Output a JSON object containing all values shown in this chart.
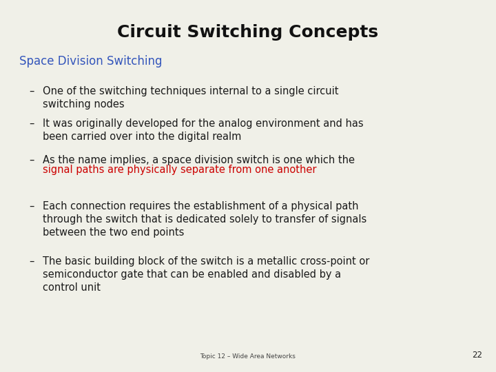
{
  "title": "Circuit Switching Concepts",
  "subtitle": "Space Division Switching",
  "subtitle_color": "#3355bb",
  "title_color": "#111111",
  "background_color": "#f0f0e8",
  "bullet_color": "#1a1a1a",
  "highlight_color": "#cc0000",
  "footer_text": "Topic 12 – Wide Area Networks",
  "footer_number": "22",
  "title_fontsize": 18,
  "subtitle_fontsize": 12,
  "bullet_fontsize": 10.5,
  "footer_fontsize": 6.5,
  "footer_num_fontsize": 8.5,
  "bullets": [
    {
      "text_parts": [
        {
          "text": "One of the switching techniques internal to a single circuit\nswitching nodes",
          "color": "#1a1a1a"
        }
      ]
    },
    {
      "text_parts": [
        {
          "text": "It was originally developed for the analog environment and has\nbeen carried over into the digital realm",
          "color": "#1a1a1a"
        }
      ]
    },
    {
      "text_parts": [
        {
          "text": "As the name implies, a space division switch is one which the\n",
          "color": "#1a1a1a"
        },
        {
          "text": "signal paths are physically separate from one another",
          "color": "#cc0000"
        }
      ]
    },
    {
      "text_parts": [
        {
          "text": "Each connection requires the establishment of a physical path\nthrough the switch that is dedicated solely to transfer of signals\nbetween the two end points",
          "color": "#1a1a1a"
        }
      ]
    },
    {
      "text_parts": [
        {
          "text": "The basic building block of the switch is a metallic cross-point or\nsemiconductor gate that can be enabled and disabled by a\ncontrol unit",
          "color": "#1a1a1a"
        }
      ]
    }
  ]
}
